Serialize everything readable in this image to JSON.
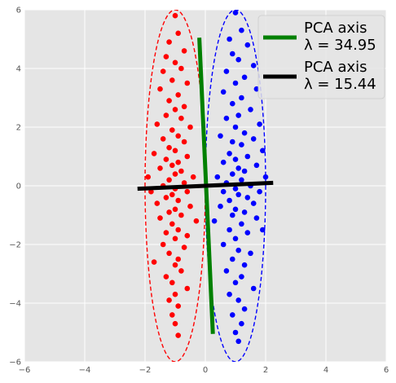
{
  "chart_data": {
    "type": "scatter",
    "title": "",
    "xlabel": "",
    "ylabel": "",
    "xlim": [
      -6,
      6
    ],
    "ylim": [
      -6,
      6
    ],
    "xticks": [
      "−6",
      "−4",
      "−2",
      "0",
      "2",
      "4",
      "6"
    ],
    "yticks": [
      "−6",
      "−4",
      "−2",
      "0",
      "2",
      "4",
      "6"
    ],
    "grid": true,
    "background": "#e5e5e5",
    "legend_placement": "top-right",
    "series": [
      {
        "kind": "points",
        "color": "#ff0000",
        "points": [
          [
            -1.0,
            5.8
          ],
          [
            -0.9,
            5.2
          ],
          [
            -1.2,
            4.9
          ],
          [
            -0.7,
            4.6
          ],
          [
            -1.3,
            4.4
          ],
          [
            -1.0,
            4.2
          ],
          [
            -0.8,
            4.0
          ],
          [
            -1.4,
            3.9
          ],
          [
            -1.1,
            3.6
          ],
          [
            -0.6,
            3.5
          ],
          [
            -1.5,
            3.3
          ],
          [
            -0.9,
            3.1
          ],
          [
            -1.2,
            2.9
          ],
          [
            -0.7,
            2.7
          ],
          [
            -1.0,
            2.6
          ],
          [
            -1.3,
            2.4
          ],
          [
            -0.8,
            2.3
          ],
          [
            -1.6,
            2.1
          ],
          [
            -0.5,
            2.0
          ],
          [
            -1.1,
            1.9
          ],
          [
            -0.9,
            1.7
          ],
          [
            -1.4,
            1.6
          ],
          [
            -0.7,
            1.5
          ],
          [
            -1.2,
            1.3
          ],
          [
            -1.0,
            1.2
          ],
          [
            -1.7,
            1.1
          ],
          [
            -0.6,
            1.0
          ],
          [
            -1.3,
            0.9
          ],
          [
            -0.9,
            0.8
          ],
          [
            -1.1,
            0.7
          ],
          [
            -1.5,
            0.6
          ],
          [
            -0.8,
            0.5
          ],
          [
            -1.0,
            0.4
          ],
          [
            -1.9,
            0.3
          ],
          [
            -0.4,
            0.3
          ],
          [
            -1.2,
            0.2
          ],
          [
            -0.7,
            0.1
          ],
          [
            -1.4,
            0.0
          ],
          [
            -1.0,
            -0.1
          ],
          [
            -1.8,
            -0.2
          ],
          [
            -0.6,
            -0.2
          ],
          [
            -1.1,
            -0.3
          ],
          [
            -1.3,
            -0.4
          ],
          [
            -0.9,
            -0.5
          ],
          [
            -1.6,
            -0.6
          ],
          [
            -0.5,
            -0.7
          ],
          [
            -1.0,
            -0.8
          ],
          [
            -1.2,
            -0.9
          ],
          [
            -0.8,
            -1.0
          ],
          [
            -1.5,
            -1.1
          ],
          [
            -0.3,
            -1.2
          ],
          [
            -1.1,
            -1.3
          ],
          [
            -0.9,
            -1.5
          ],
          [
            -1.3,
            -1.6
          ],
          [
            -0.6,
            -1.7
          ],
          [
            -1.0,
            -1.8
          ],
          [
            -1.4,
            -2.0
          ],
          [
            -0.7,
            -2.1
          ],
          [
            -1.2,
            -2.3
          ],
          [
            -0.9,
            -2.5
          ],
          [
            -1.7,
            -2.6
          ],
          [
            -1.0,
            -2.7
          ],
          [
            -0.8,
            -2.9
          ],
          [
            -1.3,
            -3.1
          ],
          [
            -1.1,
            -3.3
          ],
          [
            -0.6,
            -3.5
          ],
          [
            -1.0,
            -3.7
          ],
          [
            -1.2,
            -3.9
          ],
          [
            -0.9,
            -4.1
          ],
          [
            -1.1,
            -4.4
          ],
          [
            -1.0,
            -4.7
          ],
          [
            -0.9,
            -5.1
          ]
        ]
      },
      {
        "kind": "points",
        "color": "#0000ff",
        "points": [
          [
            1.0,
            5.9
          ],
          [
            1.2,
            5.3
          ],
          [
            0.8,
            5.0
          ],
          [
            1.4,
            4.8
          ],
          [
            0.9,
            4.5
          ],
          [
            1.1,
            4.3
          ],
          [
            1.6,
            4.1
          ],
          [
            0.7,
            3.9
          ],
          [
            1.3,
            3.7
          ],
          [
            1.0,
            3.5
          ],
          [
            1.7,
            3.3
          ],
          [
            0.6,
            3.2
          ],
          [
            1.2,
            3.0
          ],
          [
            0.9,
            2.8
          ],
          [
            1.5,
            2.6
          ],
          [
            1.1,
            2.4
          ],
          [
            0.7,
            2.3
          ],
          [
            1.8,
            2.1
          ],
          [
            1.0,
            2.0
          ],
          [
            1.3,
            1.8
          ],
          [
            0.5,
            1.7
          ],
          [
            1.6,
            1.6
          ],
          [
            0.9,
            1.5
          ],
          [
            1.2,
            1.4
          ],
          [
            1.9,
            1.2
          ],
          [
            0.8,
            1.1
          ],
          [
            1.4,
            1.0
          ],
          [
            1.0,
            0.9
          ],
          [
            0.6,
            0.8
          ],
          [
            1.7,
            0.7
          ],
          [
            1.1,
            0.6
          ],
          [
            1.3,
            0.5
          ],
          [
            0.9,
            0.4
          ],
          [
            2.0,
            0.3
          ],
          [
            0.4,
            0.3
          ],
          [
            1.2,
            0.2
          ],
          [
            0.7,
            0.1
          ],
          [
            1.5,
            0.0
          ],
          [
            1.0,
            -0.1
          ],
          [
            1.8,
            -0.2
          ],
          [
            0.6,
            -0.2
          ],
          [
            1.1,
            -0.3
          ],
          [
            1.4,
            -0.4
          ],
          [
            0.8,
            -0.5
          ],
          [
            1.6,
            -0.6
          ],
          [
            0.5,
            -0.7
          ],
          [
            1.0,
            -0.8
          ],
          [
            1.3,
            -0.9
          ],
          [
            0.9,
            -1.0
          ],
          [
            1.7,
            -1.1
          ],
          [
            0.3,
            -1.2
          ],
          [
            1.2,
            -1.3
          ],
          [
            0.8,
            -1.5
          ],
          [
            1.4,
            -1.6
          ],
          [
            1.0,
            -1.8
          ],
          [
            1.9,
            -1.5
          ],
          [
            0.6,
            -2.0
          ],
          [
            1.1,
            -2.2
          ],
          [
            1.5,
            -2.3
          ],
          [
            0.9,
            -2.5
          ],
          [
            1.3,
            -2.7
          ],
          [
            0.7,
            -2.9
          ],
          [
            1.2,
            -3.1
          ],
          [
            1.0,
            -3.3
          ],
          [
            1.6,
            -3.5
          ],
          [
            0.8,
            -3.7
          ],
          [
            1.1,
            -3.9
          ],
          [
            1.3,
            -4.2
          ],
          [
            0.9,
            -4.4
          ],
          [
            1.2,
            -4.7
          ],
          [
            1.0,
            -5.0
          ],
          [
            1.1,
            -5.3
          ]
        ]
      },
      {
        "kind": "ellipse",
        "color": "#ff0000",
        "style": "dashed",
        "center": [
          -1,
          0
        ],
        "radius_x": 1,
        "radius_y": 6
      },
      {
        "kind": "ellipse",
        "color": "#0000ff",
        "style": "dashed",
        "center": [
          1,
          0
        ],
        "radius_x": 1,
        "radius_y": 6
      },
      {
        "kind": "line",
        "name": "PCA axis\nλ = 34.95",
        "label_lines": [
          "PCA axis",
          "λ = 34.95"
        ],
        "color": "#008000",
        "x": [
          -0.2,
          0.25
        ],
        "y": [
          5.05,
          -5.05
        ]
      },
      {
        "kind": "line",
        "name": "PCA axis\nλ = 15.44",
        "label_lines": [
          "PCA axis",
          "λ = 15.44"
        ],
        "color": "#000000",
        "x": [
          -2.25,
          2.25
        ],
        "y": [
          -0.1,
          0.1
        ]
      }
    ]
  }
}
